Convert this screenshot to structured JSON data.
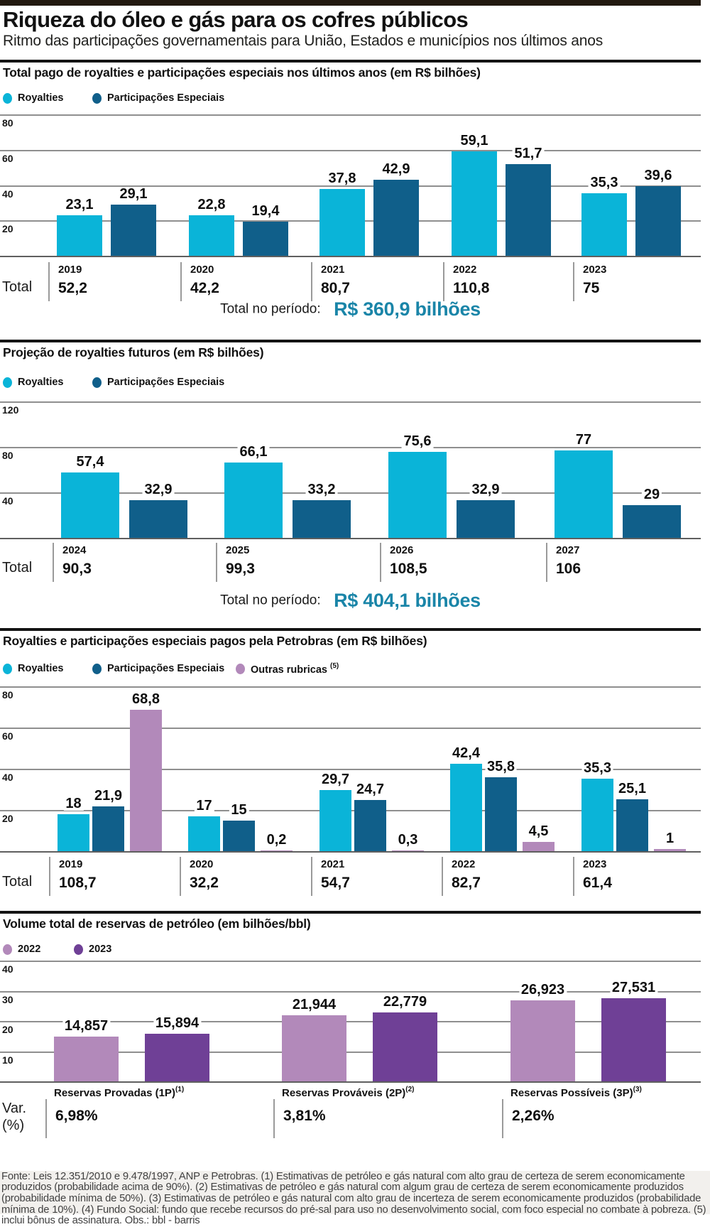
{
  "header": {
    "title": "Riqueza do óleo e gás para os cofres públicos",
    "subtitle": "Ritmo das participações governamentais para União, Estados e municípios nos últimos anos"
  },
  "labels": {
    "total_row": "Total",
    "total_period": "Total no período:",
    "var_row_line1": "Var.",
    "var_row_line2": "(%)"
  },
  "colors": {
    "royalties": "#0ab4d8",
    "participacoes_especiais": "#105f8a",
    "outras_rubricas": "#b289ba",
    "year_2022": "#b289ba",
    "year_2023": "#6f4096",
    "period_total_text": "#1a85a8"
  },
  "chart_data": [
    {
      "type": "bar",
      "title": "Total pago de royalties e participações especiais nos últimos anos (em R$ bilhões)",
      "categories": [
        "2019",
        "2020",
        "2021",
        "2022",
        "2023"
      ],
      "series": [
        {
          "name": "Royalties",
          "color": "royalties",
          "values": [
            23.1,
            22.8,
            37.8,
            59.1,
            35.3
          ],
          "labels": [
            "23,1",
            "22,8",
            "37,8",
            "59,1",
            "35,3"
          ]
        },
        {
          "name": "Participações Especiais",
          "color": "participacoes_especiais",
          "values": [
            29.1,
            19.4,
            42.9,
            51.7,
            39.6
          ],
          "labels": [
            "29,1",
            "19,4",
            "42,9",
            "51,7",
            "39,6"
          ]
        }
      ],
      "yticks": [
        80,
        60,
        40,
        20
      ],
      "ylim": [
        0,
        80
      ],
      "grid": true,
      "legend_position": "top",
      "totals": [
        "52,2",
        "42,2",
        "80,7",
        "110,8",
        "75"
      ],
      "period_total": "R$ 360,9 bilhões"
    },
    {
      "type": "bar",
      "title": "Projeção de royalties futuros (em R$ bilhões)",
      "categories": [
        "2024",
        "2025",
        "2026",
        "2027"
      ],
      "series": [
        {
          "name": "Royalties",
          "color": "royalties",
          "values": [
            57.4,
            66.1,
            75.6,
            77
          ],
          "labels": [
            "57,4",
            "66,1",
            "75,6",
            "77"
          ]
        },
        {
          "name": "Participações Especiais",
          "color": "participacoes_especiais",
          "values": [
            32.9,
            33.2,
            32.9,
            29
          ],
          "labels": [
            "32,9",
            "33,2",
            "32,9",
            "29"
          ]
        }
      ],
      "yticks": [
        120,
        80,
        40
      ],
      "ylim": [
        0,
        120
      ],
      "grid": true,
      "legend_position": "top",
      "totals": [
        "90,3",
        "99,3",
        "108,5",
        "106"
      ],
      "period_total": "R$ 404,1 bilhões"
    },
    {
      "type": "bar",
      "title": "Royalties e participações especiais pagos pela Petrobras (em R$ bilhões)",
      "categories": [
        "2019",
        "2020",
        "2021",
        "2022",
        "2023"
      ],
      "series": [
        {
          "name": "Royalties",
          "color": "royalties",
          "values": [
            18,
            17,
            29.7,
            42.4,
            35.3
          ],
          "labels": [
            "18",
            "17",
            "29,7",
            "42,4",
            "35,3"
          ]
        },
        {
          "name": "Participações Especiais",
          "color": "participacoes_especiais",
          "values": [
            21.9,
            15,
            24.7,
            35.8,
            25.1
          ],
          "labels": [
            "21,9",
            "15",
            "24,7",
            "35,8",
            "25,1"
          ]
        },
        {
          "name": "Outras rubricas",
          "sup": "(5)",
          "color": "outras_rubricas",
          "values": [
            68.8,
            0.2,
            0.3,
            4.5,
            1
          ],
          "labels": [
            "68,8",
            "0,2",
            "0,3",
            "4,5",
            "1"
          ]
        }
      ],
      "yticks": [
        80,
        60,
        40,
        20
      ],
      "ylim": [
        0,
        80
      ],
      "grid": true,
      "legend_position": "top",
      "totals": [
        "108,7",
        "32,2",
        "54,7",
        "82,7",
        "61,4"
      ]
    },
    {
      "type": "bar",
      "title": "Volume total de reservas de petróleo (em bilhões/bbl)",
      "categories": [
        {
          "text": "Reservas Provadas (1P)",
          "sup": "(1)"
        },
        {
          "text": "Reservas Prováveis (2P)",
          "sup": "(2)"
        },
        {
          "text": "Reservas Possíveis (3P)",
          "sup": "(3)"
        }
      ],
      "series": [
        {
          "name": "2022",
          "color": "year_2022",
          "values": [
            14.857,
            21.944,
            26.923
          ],
          "labels": [
            "14,857",
            "21,944",
            "26,923"
          ]
        },
        {
          "name": "2023",
          "color": "year_2023",
          "values": [
            15.894,
            22.779,
            27.531
          ],
          "labels": [
            "15,894",
            "22,779",
            "27,531"
          ]
        }
      ],
      "yticks": [
        40,
        30,
        20,
        10
      ],
      "ylim": [
        0,
        40
      ],
      "grid": true,
      "legend_position": "top",
      "variation": [
        "6,98%",
        "3,81%",
        "2,26%"
      ]
    }
  ],
  "footer": {
    "text": "Fonte: Leis 12.351/2010 e 9.478/1997, ANP e Petrobras. (1) Estimativas de petróleo e gás natural com alto grau de certeza de serem economicamente produzidos (probabilidade acima de 90%). (2) Estimativas de petróleo e gás natural com algum grau de certeza de serem economicamente produzidos (probabilidade mínima de 50%). (3) Estimativas de petróleo e gás natural com alto grau de incerteza de serem economicamente produzidos (probabilidade mínima de 10%). (4) Fundo Social: fundo que recebe recursos do pré-sal para uso no desenvolvimento social, com foco especial no combate à pobreza. (5) inclui bônus de assinatura. Obs.: bbl - barris"
  }
}
